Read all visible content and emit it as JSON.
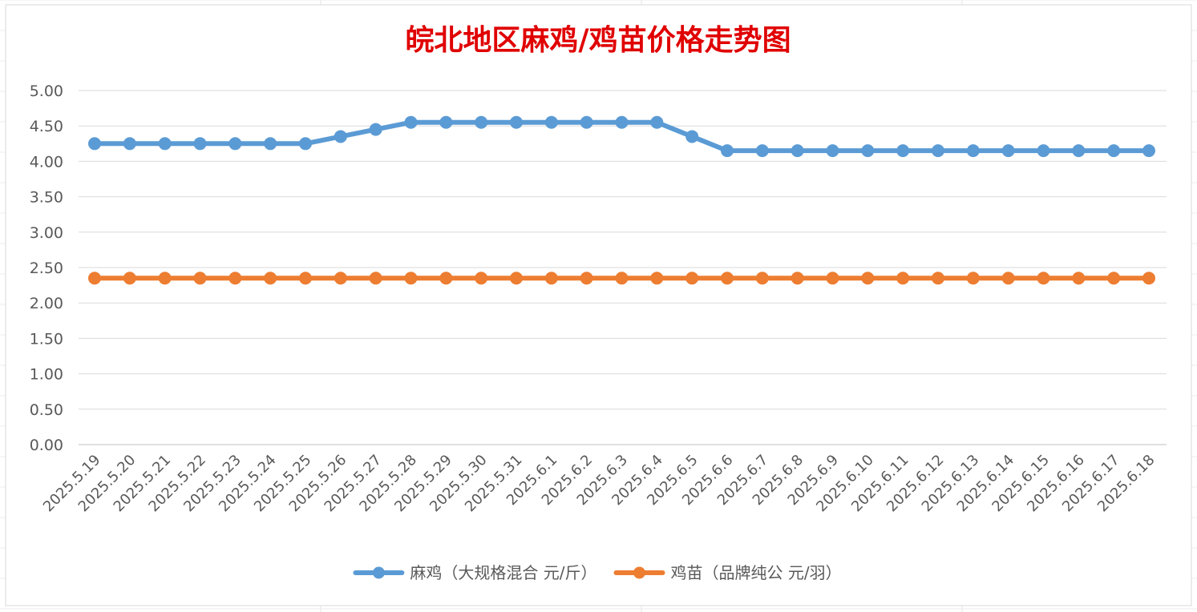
{
  "chart_data": {
    "type": "line",
    "title": "皖北地区麻鸡/鸡苗价格走势图",
    "title_color": "#e00000",
    "ylim": [
      0,
      5
    ],
    "yticks": [
      "0.00",
      "0.50",
      "1.00",
      "1.50",
      "2.00",
      "2.50",
      "3.00",
      "3.50",
      "4.00",
      "4.50",
      "5.00"
    ],
    "grid": true,
    "legend_position": "bottom",
    "categories": [
      "2025.5.19",
      "2025.5.20",
      "2025.5.21",
      "2025.5.22",
      "2025.5.23",
      "2025.5.24",
      "2025.5.25",
      "2025.5.26",
      "2025.5.27",
      "2025.5.28",
      "2025.5.29",
      "2025.5.30",
      "2025.5.31",
      "2025.6.1",
      "2025.6.2",
      "2025.6.3",
      "2025.6.4",
      "2025.6.5",
      "2025.6.6",
      "2025.6.7",
      "2025.6.8",
      "2025.6.9",
      "2025.6.10",
      "2025.6.11",
      "2025.6.12",
      "2025.6.13",
      "2025.6.14",
      "2025.6.15",
      "2025.6.16",
      "2025.6.17",
      "2025.6.18"
    ],
    "series": [
      {
        "name": "麻鸡（大规格混合 元/斤）",
        "color": "#5b9bd5",
        "values": [
          4.25,
          4.25,
          4.25,
          4.25,
          4.25,
          4.25,
          4.25,
          4.35,
          4.45,
          4.55,
          4.55,
          4.55,
          4.55,
          4.55,
          4.55,
          4.55,
          4.55,
          4.35,
          4.15,
          4.15,
          4.15,
          4.15,
          4.15,
          4.15,
          4.15,
          4.15,
          4.15,
          4.15,
          4.15,
          4.15,
          4.15
        ]
      },
      {
        "name": "鸡苗（品牌纯公 元/羽）",
        "color": "#ed7d31",
        "values": [
          2.35,
          2.35,
          2.35,
          2.35,
          2.35,
          2.35,
          2.35,
          2.35,
          2.35,
          2.35,
          2.35,
          2.35,
          2.35,
          2.35,
          2.35,
          2.35,
          2.35,
          2.35,
          2.35,
          2.35,
          2.35,
          2.35,
          2.35,
          2.35,
          2.35,
          2.35,
          2.35,
          2.35,
          2.35,
          2.35,
          2.35
        ]
      }
    ]
  }
}
